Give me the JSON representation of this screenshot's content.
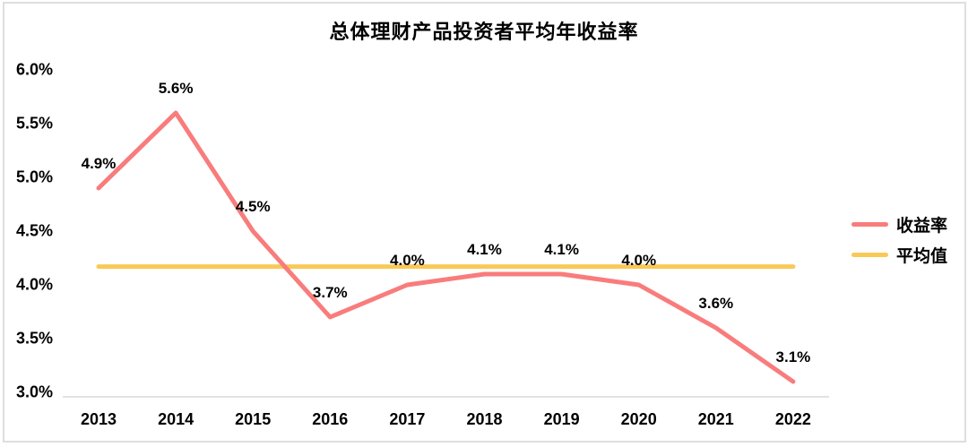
{
  "title": "总体理财产品投资者平均年收益率",
  "legend": [
    {
      "label": "收益率",
      "color": "#f97c7c"
    },
    {
      "label": "平均值",
      "color": "#f9c957"
    }
  ],
  "colors": {
    "series_line": "#f97c7c",
    "average_line": "#f9c957",
    "axis_line": "#d9d9d9",
    "frame_border": "#dedede",
    "text": "#000000",
    "background": "#ffffff"
  },
  "chart_data": {
    "type": "line",
    "title": "总体理财产品投资者平均年收益率",
    "categories": [
      "2013",
      "2014",
      "2015",
      "2016",
      "2017",
      "2018",
      "2019",
      "2020",
      "2021",
      "2022"
    ],
    "series": [
      {
        "name": "收益率",
        "values": [
          4.9,
          5.6,
          4.5,
          3.7,
          4.0,
          4.1,
          4.1,
          4.0,
          3.6,
          3.1
        ],
        "labels": [
          "4.9%",
          "5.6%",
          "4.5%",
          "3.7%",
          "4.0%",
          "4.1%",
          "4.1%",
          "4.0%",
          "3.6%",
          "3.1%"
        ],
        "color": "#f97c7c",
        "style": "line"
      },
      {
        "name": "平均值",
        "constant_value": 4.17,
        "color": "#f9c957",
        "style": "horizontal-reference-line"
      }
    ],
    "xlabel": "",
    "ylabel": "",
    "ylim": [
      3.0,
      6.0
    ],
    "yticks": [
      {
        "label": "6.0%",
        "value": 6.0
      },
      {
        "label": "5.5%",
        "value": 5.5
      },
      {
        "label": "5.0%",
        "value": 5.0
      },
      {
        "label": "4.5%",
        "value": 4.5
      },
      {
        "label": "4.0%",
        "value": 4.0
      },
      {
        "label": "3.5%",
        "value": 3.5
      },
      {
        "label": "3.0%",
        "value": 3.0
      }
    ],
    "grid": false,
    "legend_position": "right",
    "data_labels_shown": true
  }
}
